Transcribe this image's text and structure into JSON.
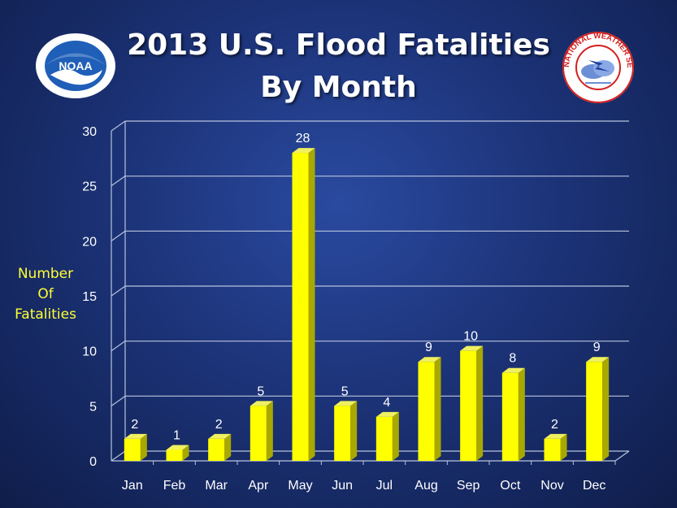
{
  "chart_data": {
    "type": "bar",
    "title": [
      "2013 U.S. Flood Fatalities",
      "By Month"
    ],
    "ylabel": [
      "Number",
      "Of",
      "Fatalities"
    ],
    "xlabel": "",
    "categories": [
      "Jan",
      "Feb",
      "Mar",
      "Apr",
      "May",
      "Jun",
      "Jul",
      "Aug",
      "Sep",
      "Oct",
      "Nov",
      "Dec"
    ],
    "values": [
      2,
      1,
      2,
      5,
      28,
      5,
      4,
      9,
      10,
      8,
      2,
      9
    ],
    "ylim": [
      0,
      30
    ],
    "yticks": [
      0,
      5,
      10,
      15,
      20,
      25,
      30
    ],
    "grid": true,
    "data_labels": true,
    "bar_color": "#ffff00"
  },
  "logos": {
    "noaa": {
      "text": "NOAA"
    },
    "nws": {
      "text": "NATIONAL WEATHER SERVICE"
    }
  }
}
